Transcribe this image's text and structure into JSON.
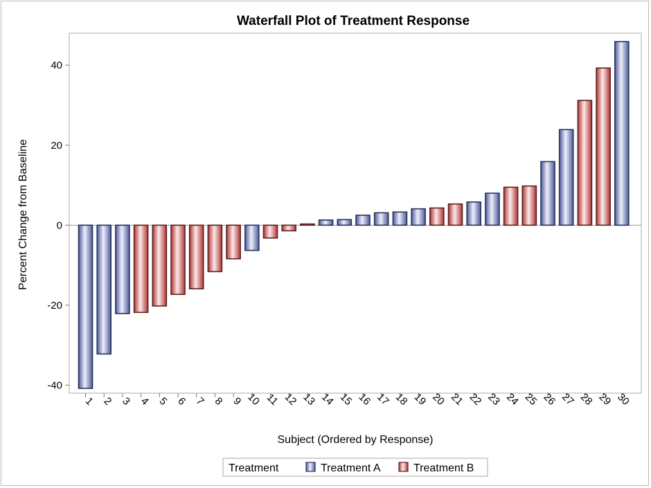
{
  "chart_data": {
    "type": "bar",
    "title": "Waterfall Plot of Treatment Response",
    "xlabel": "Subject (Ordered by Response)",
    "ylabel": "Percent Change from Baseline",
    "ylim": [
      -42,
      48
    ],
    "yticks": [
      -40,
      -20,
      0,
      20,
      40
    ],
    "ytick_labels": [
      "-40",
      "-20",
      "0",
      "20",
      "40"
    ],
    "categories": [
      "1",
      "2",
      "3",
      "4",
      "5",
      "6",
      "7",
      "8",
      "9",
      "10",
      "11",
      "12",
      "13",
      "14",
      "15",
      "16",
      "17",
      "18",
      "19",
      "20",
      "21",
      "22",
      "23",
      "24",
      "25",
      "26",
      "27",
      "28",
      "29",
      "30"
    ],
    "values": [
      -40.8,
      -32.2,
      -22.1,
      -21.8,
      -20.2,
      -17.3,
      -15.9,
      -11.6,
      -8.4,
      -6.3,
      -3.2,
      -1.4,
      0.3,
      1.3,
      1.4,
      2.5,
      3.1,
      3.3,
      4.1,
      4.3,
      5.3,
      5.8,
      8.0,
      9.5,
      9.8,
      15.9,
      23.9,
      31.2,
      39.3,
      45.9
    ],
    "groups": [
      "Treatment A",
      "Treatment A",
      "Treatment A",
      "Treatment B",
      "Treatment B",
      "Treatment B",
      "Treatment B",
      "Treatment B",
      "Treatment B",
      "Treatment A",
      "Treatment B",
      "Treatment B",
      "Treatment B",
      "Treatment A",
      "Treatment A",
      "Treatment A",
      "Treatment A",
      "Treatment A",
      "Treatment A",
      "Treatment B",
      "Treatment B",
      "Treatment A",
      "Treatment A",
      "Treatment B",
      "Treatment B",
      "Treatment A",
      "Treatment A",
      "Treatment B",
      "Treatment B",
      "Treatment A"
    ],
    "series": [
      {
        "name": "Treatment A",
        "color": "#7b88c4",
        "edge": "#27335c"
      },
      {
        "name": "Treatment B",
        "color": "#d65a5a",
        "edge": "#5c1f1f"
      }
    ],
    "legend": {
      "title": "Treatment",
      "position": "bottom"
    },
    "grid": false,
    "zero_line": true
  }
}
